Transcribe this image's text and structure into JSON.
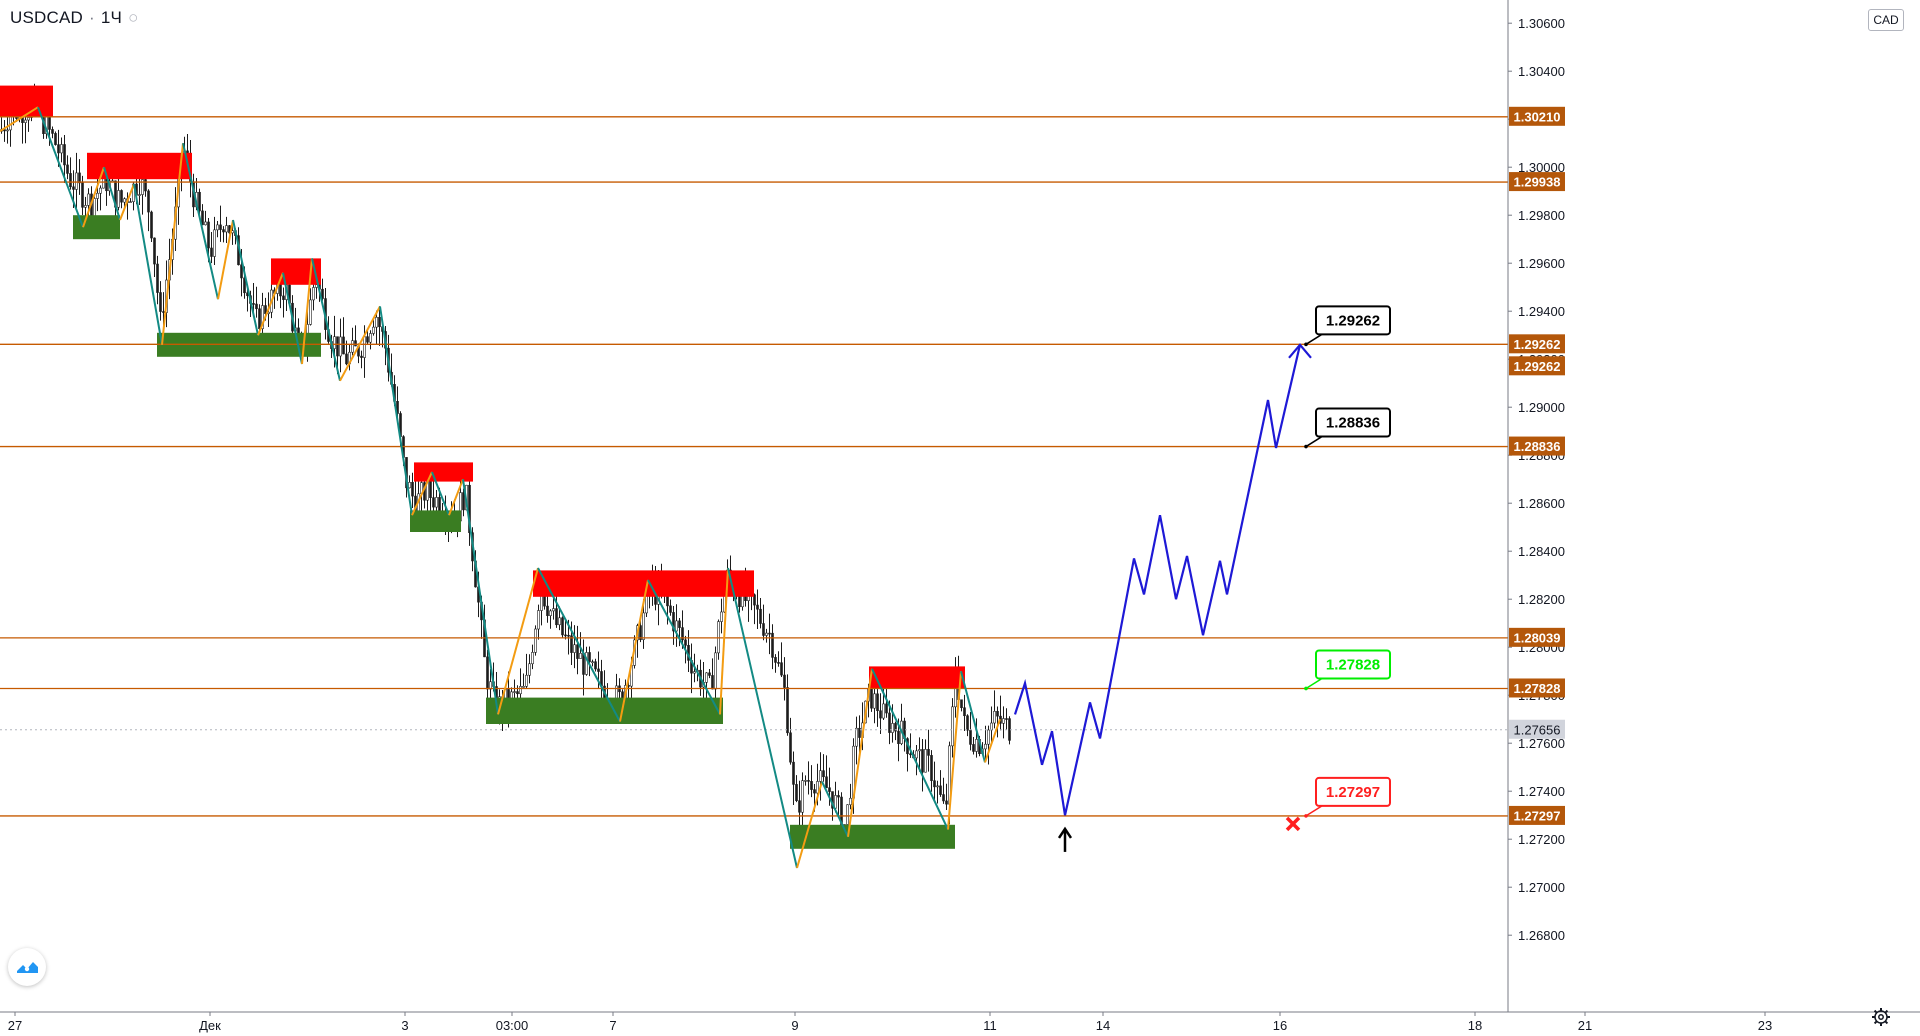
{
  "header": {
    "symbol": "USDCAD",
    "interval": "1Ч",
    "currency": "CAD"
  },
  "colors": {
    "level_line": "#c65a00",
    "label_bg": "#b4570a",
    "current_price_bg": "#d1d4dc",
    "resistance_zone": "#ff0000",
    "support_zone": "#3a7d22",
    "zigzag_up": "#f39c12",
    "zigzag_down": "#138a84",
    "forecast": "#1e19d6",
    "target_green": "#00ee00",
    "stop_red": "#ff1f1f"
  },
  "chart_data": {
    "type": "candlestick",
    "symbol": "USDCAD",
    "interval": "1Ч",
    "ylim": [
      1.267,
      1.3062
    ],
    "y_ticks": [
      "1.26800",
      "1.27000",
      "1.27200",
      "1.27400",
      "1.27600",
      "1.27800",
      "1.28000",
      "1.28200",
      "1.28400",
      "1.28600",
      "1.28800",
      "1.29000",
      "1.29200",
      "1.29400",
      "1.29600",
      "1.29800",
      "1.30000",
      "1.30200",
      "1.30400",
      "1.30600"
    ],
    "x_ticks": [
      "27",
      "Дек",
      "3",
      "03:00",
      "7",
      "9",
      "11",
      "14",
      "16",
      "18",
      "21",
      "23"
    ],
    "current_price": "1.27656",
    "levels": [
      "1.30210",
      "1.29938",
      "1.29262",
      "1.29262",
      "1.28836",
      "1.28039",
      "1.27828",
      "1.27297"
    ],
    "level_values": [
      1.3021,
      1.29938,
      1.29262,
      1.28836,
      1.28039,
      1.27828,
      1.27297
    ],
    "price_path": [
      [
        0,
        1.3015
      ],
      [
        10,
        1.3023
      ],
      [
        35,
        1.3025
      ],
      [
        55,
        1.301
      ],
      [
        70,
        1.2995
      ],
      [
        90,
        1.2985
      ],
      [
        105,
        1.2995
      ],
      [
        120,
        1.2985
      ],
      [
        140,
        1.2995
      ],
      [
        150,
        1.298
      ],
      [
        160,
        1.2935
      ],
      [
        175,
        1.298
      ],
      [
        182,
        1.301
      ],
      [
        195,
        1.2985
      ],
      [
        210,
        1.2965
      ],
      [
        225,
        1.298
      ],
      [
        240,
        1.296
      ],
      [
        255,
        1.2935
      ],
      [
        270,
        1.2945
      ],
      [
        285,
        1.295
      ],
      [
        300,
        1.292
      ],
      [
        315,
        1.2955
      ],
      [
        330,
        1.293
      ],
      [
        345,
        1.292
      ],
      [
        360,
        1.2925
      ],
      [
        375,
        1.294
      ],
      [
        385,
        1.2925
      ],
      [
        395,
        1.29
      ],
      [
        405,
        1.287
      ],
      [
        415,
        1.286
      ],
      [
        425,
        1.2865
      ],
      [
        440,
        1.286
      ],
      [
        455,
        1.2855
      ],
      [
        465,
        1.2865
      ],
      [
        475,
        1.283
      ],
      [
        485,
        1.279
      ],
      [
        495,
        1.2775
      ],
      [
        510,
        1.2778
      ],
      [
        525,
        1.2782
      ],
      [
        540,
        1.2825
      ],
      [
        555,
        1.281
      ],
      [
        570,
        1.28
      ],
      [
        590,
        1.279
      ],
      [
        605,
        1.2782
      ],
      [
        620,
        1.2778
      ],
      [
        635,
        1.28
      ],
      [
        650,
        1.2825
      ],
      [
        665,
        1.2818
      ],
      [
        680,
        1.2805
      ],
      [
        695,
        1.279
      ],
      [
        710,
        1.2782
      ],
      [
        725,
        1.283
      ],
      [
        740,
        1.2822
      ],
      [
        755,
        1.2815
      ],
      [
        770,
        1.2805
      ],
      [
        785,
        1.278
      ],
      [
        795,
        1.273
      ],
      [
        805,
        1.2745
      ],
      [
        815,
        1.2745
      ],
      [
        830,
        1.274
      ],
      [
        845,
        1.2725
      ],
      [
        855,
        1.276
      ],
      [
        870,
        1.278
      ],
      [
        885,
        1.277
      ],
      [
        900,
        1.2765
      ],
      [
        915,
        1.2755
      ],
      [
        930,
        1.275
      ],
      [
        945,
        1.273
      ],
      [
        955,
        1.279
      ],
      [
        965,
        1.2765
      ],
      [
        980,
        1.276
      ],
      [
        995,
        1.277
      ],
      [
        1010,
        1.2766
      ]
    ],
    "resistance_zones": [
      {
        "x": [
          0,
          53
        ],
        "y": [
          1.3021,
          1.3034
        ]
      },
      {
        "x": [
          87,
          192
        ],
        "y": [
          1.2995,
          1.3006
        ]
      },
      {
        "x": [
          271,
          321
        ],
        "y": [
          1.2951,
          1.2962
        ]
      },
      {
        "x": [
          414,
          473
        ],
        "y": [
          1.2869,
          1.2877
        ]
      },
      {
        "x": [
          533,
          754
        ],
        "y": [
          1.2821,
          1.2832
        ]
      },
      {
        "x": [
          869,
          965
        ],
        "y": [
          1.2783,
          1.2792
        ]
      }
    ],
    "support_zones": [
      {
        "x": [
          73,
          120
        ],
        "y": [
          1.297,
          1.298
        ]
      },
      {
        "x": [
          157,
          321
        ],
        "y": [
          1.2921,
          1.2931
        ]
      },
      {
        "x": [
          410,
          461
        ],
        "y": [
          1.2848,
          1.2857
        ]
      },
      {
        "x": [
          486,
          723
        ],
        "y": [
          1.2768,
          1.2779
        ]
      },
      {
        "x": [
          790,
          955
        ],
        "y": [
          1.2716,
          1.2726
        ]
      }
    ],
    "zigzag": [
      [
        0,
        1.3015
      ],
      [
        38,
        1.3025
      ],
      [
        83,
        1.2975
      ],
      [
        104,
        1.3
      ],
      [
        120,
        1.2978
      ],
      [
        134,
        1.2993
      ],
      [
        162,
        1.2926
      ],
      [
        183,
        1.301
      ],
      [
        218,
        1.2945
      ],
      [
        233,
        1.2978
      ],
      [
        258,
        1.293
      ],
      [
        283,
        1.2956
      ],
      [
        302,
        1.2918
      ],
      [
        312,
        1.2962
      ],
      [
        340,
        1.2911
      ],
      [
        380,
        1.2942
      ],
      [
        412,
        1.2855
      ],
      [
        432,
        1.2873
      ],
      [
        449,
        1.2855
      ],
      [
        463,
        1.287
      ],
      [
        498,
        1.2772
      ],
      [
        538,
        1.2833
      ],
      [
        620,
        1.2769
      ],
      [
        648,
        1.2828
      ],
      [
        720,
        1.2772
      ],
      [
        728,
        1.2833
      ],
      [
        797,
        1.2708
      ],
      [
        822,
        1.2744
      ],
      [
        848,
        1.2721
      ],
      [
        872,
        1.2791
      ],
      [
        948,
        1.2724
      ],
      [
        961,
        1.279
      ],
      [
        985,
        1.2752
      ],
      [
        1000,
        1.277
      ]
    ],
    "forecast_path": [
      [
        1015,
        1.2772
      ],
      [
        1025,
        1.2785
      ],
      [
        1042,
        1.2751
      ],
      [
        1052,
        1.2765
      ],
      [
        1065,
        1.273
      ],
      [
        1090,
        1.2777
      ],
      [
        1100,
        1.2762
      ],
      [
        1134,
        1.2837
      ],
      [
        1144,
        1.2822
      ],
      [
        1160,
        1.2855
      ],
      [
        1176,
        1.282
      ],
      [
        1187,
        1.2838
      ],
      [
        1203,
        1.2805
      ],
      [
        1220,
        1.2836
      ],
      [
        1227,
        1.2822
      ],
      [
        1268,
        1.2903
      ],
      [
        1276,
        1.2883
      ],
      [
        1300,
        1.2926
      ]
    ],
    "annotations": [
      {
        "text": "1.29262",
        "color": "black",
        "price": 1.29262
      },
      {
        "text": "1.28836",
        "color": "black",
        "price": 1.28836
      },
      {
        "text": "1.27828",
        "color": "green",
        "price": 1.27828
      },
      {
        "text": "1.27297",
        "color": "red",
        "price": 1.27297
      }
    ],
    "markers": [
      {
        "type": "up-arrow",
        "price": 1.27297
      },
      {
        "type": "cross",
        "price": 1.27297
      }
    ]
  }
}
